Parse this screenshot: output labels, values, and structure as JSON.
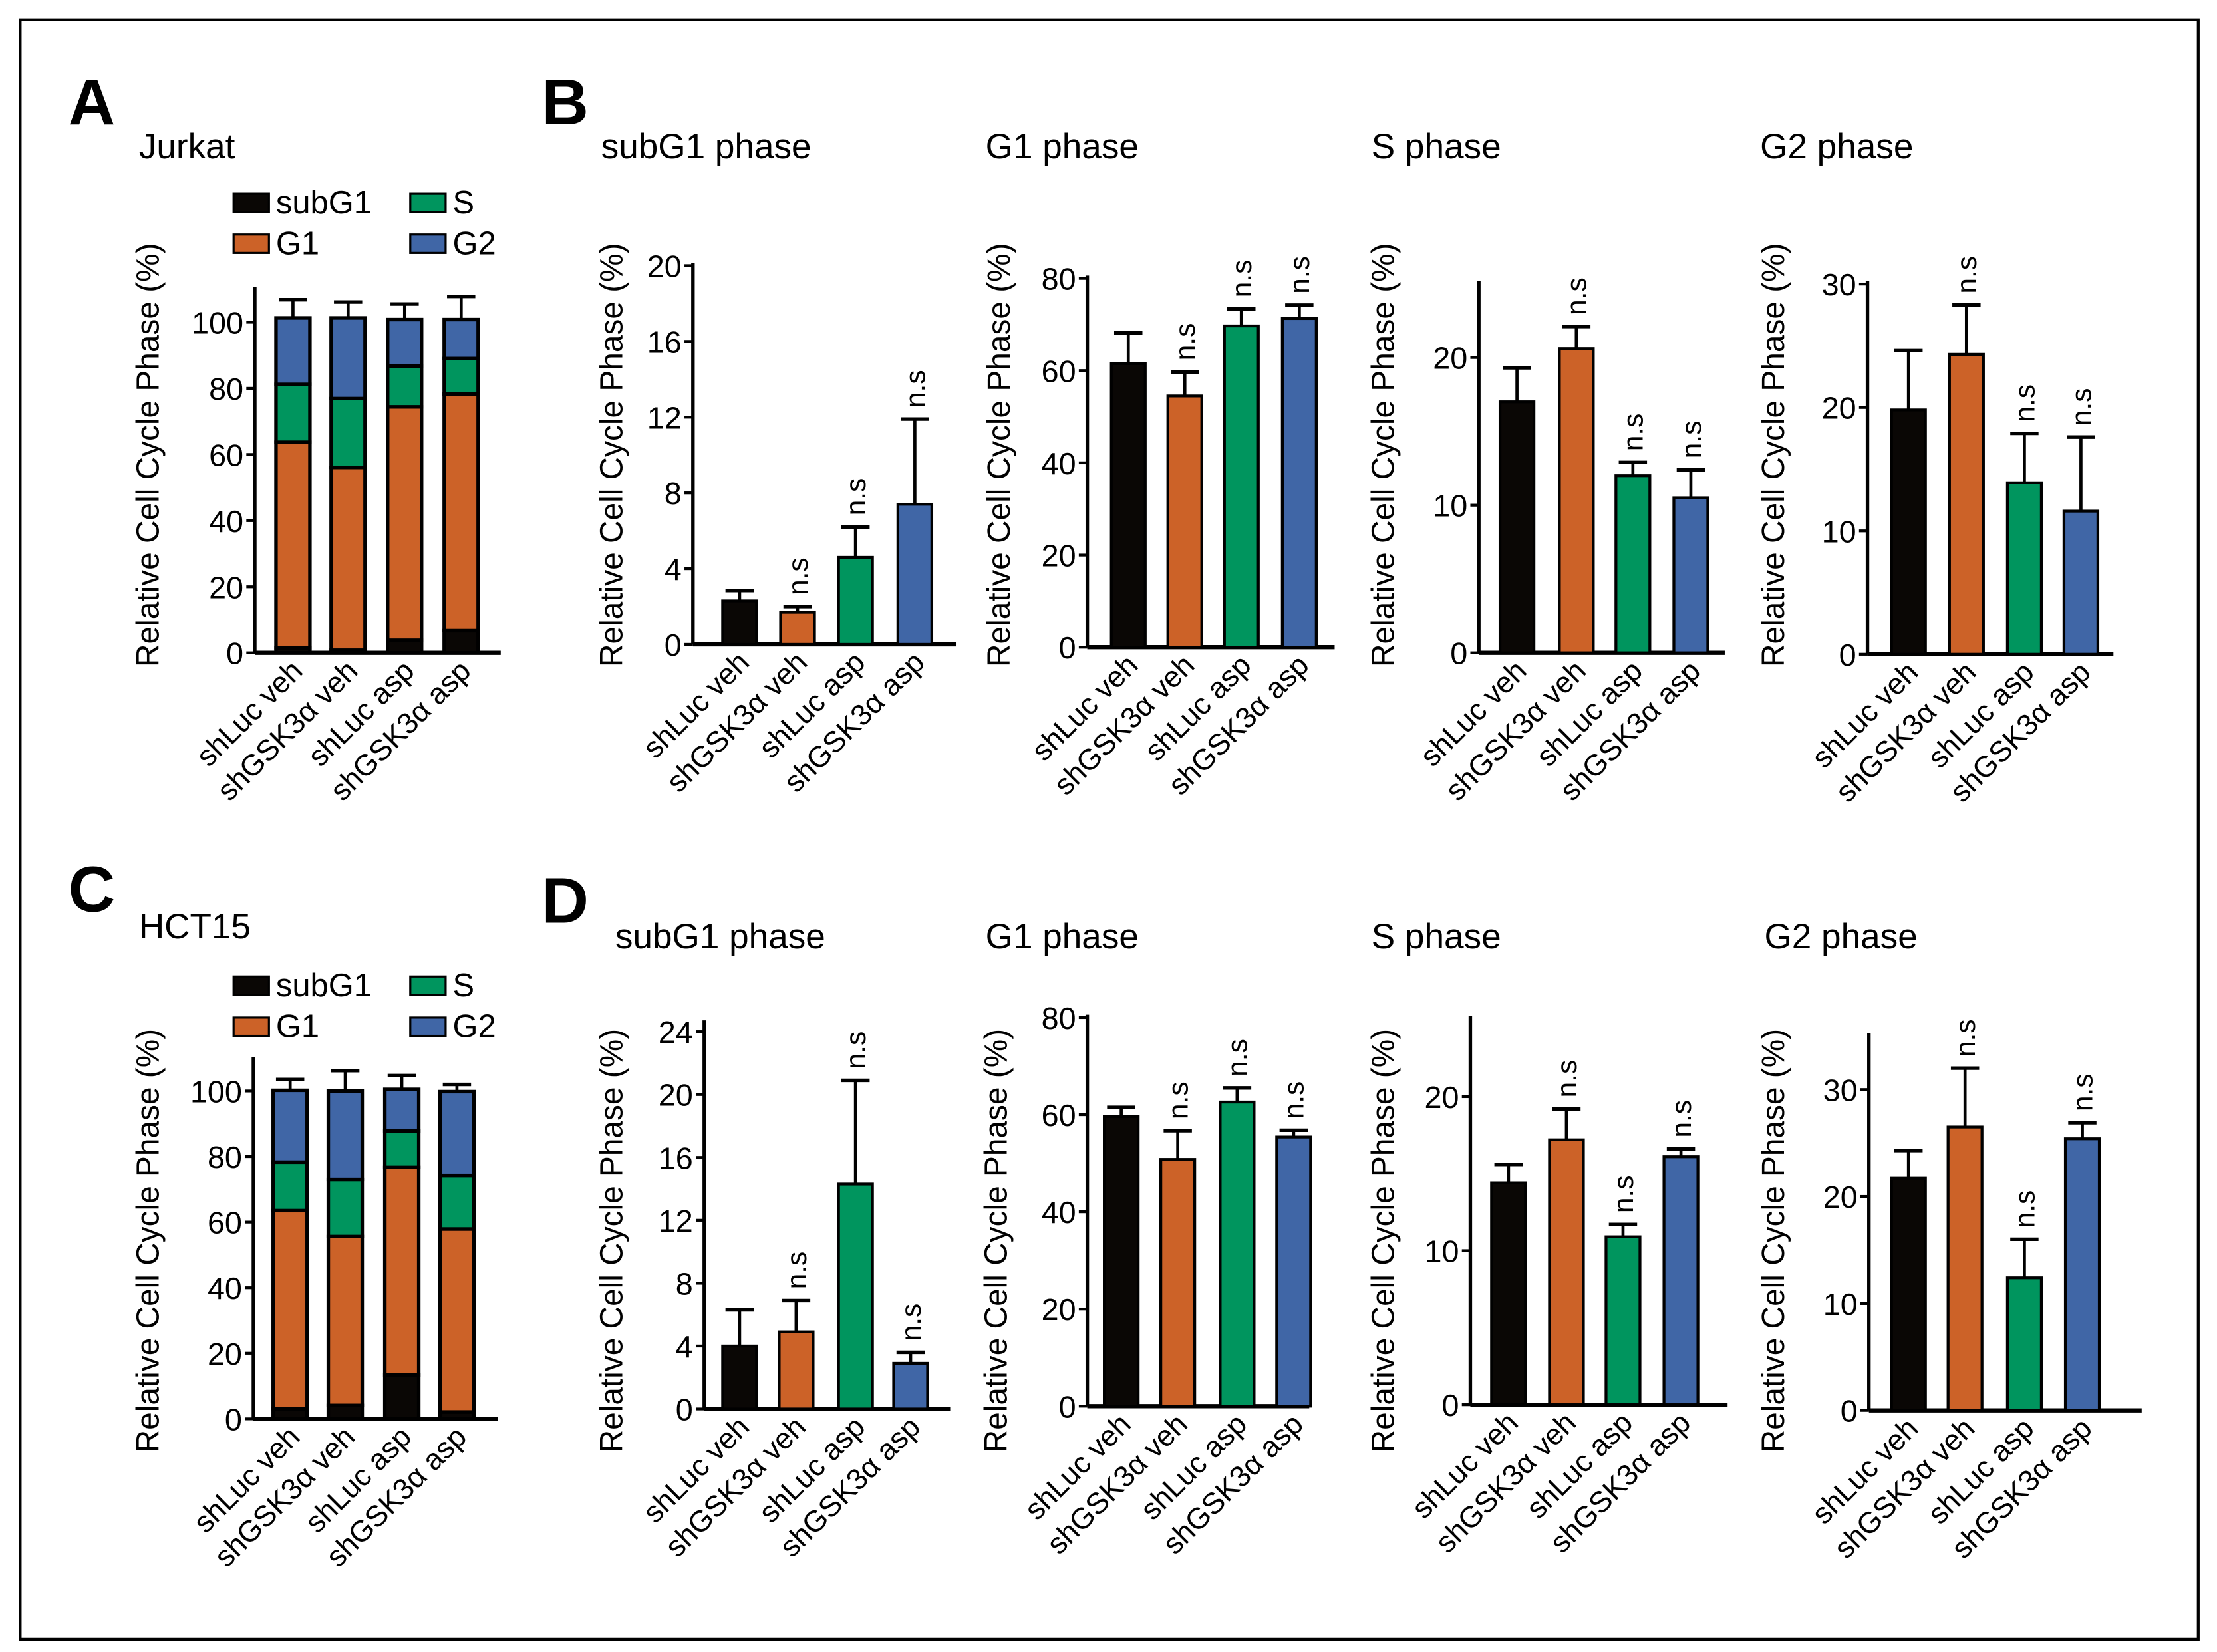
{
  "panels": {
    "A": {
      "letter": "A",
      "title": "Jurkat"
    },
    "B": {
      "letter": "B"
    },
    "C": {
      "letter": "C",
      "title": "HCT15"
    },
    "D": {
      "letter": "D"
    }
  },
  "colors": {
    "subG1": "#0a0705",
    "G1": "#cc6228",
    "S": "#00955e",
    "G2": "#4066a6"
  },
  "chart_data": [
    {
      "panel": "A",
      "type": "bar",
      "stacked": true,
      "title": "",
      "ylabel": "Relative Cell Cycle Phase (%)",
      "ylim": [
        0,
        110
      ],
      "yticks": [
        0,
        20,
        40,
        60,
        80,
        100
      ],
      "categories": [
        "shLuc veh",
        "shGSK3α veh",
        "shLuc asp",
        "shGSK3α asp"
      ],
      "legend": {
        "placement": "top",
        "order": [
          "subG1",
          "S",
          "G1",
          "G2"
        ]
      },
      "series": [
        {
          "name": "subG1",
          "color": "#0a0705",
          "values": [
            1.5,
            0.8,
            3.8,
            6.7
          ],
          "errors": [
            1.0,
            1.1,
            2.2,
            5.0
          ]
        },
        {
          "name": "G1",
          "color": "#cc6228",
          "values": [
            62.2,
            55.3,
            70.6,
            71.6
          ],
          "errors": [
            6.5,
            5.6,
            3.8,
            3.7
          ]
        },
        {
          "name": "S",
          "color": "#00955e",
          "values": [
            17.5,
            20.8,
            12.3,
            10.7
          ],
          "errors": [
            2.5,
            2.5,
            1.4,
            2.7
          ]
        },
        {
          "name": "G2",
          "color": "#4066a6",
          "values": [
            20.1,
            24.4,
            14.1,
            11.8
          ],
          "errors": [
            5.5,
            4.8,
            4.7,
            7.0
          ]
        }
      ]
    },
    {
      "panel": "B",
      "type": "bar",
      "title": "subG1 phase",
      "ylabel": "Relative Cell Cycle Phase (%)",
      "ylim": [
        0,
        20
      ],
      "yticks": [
        0,
        4,
        8,
        12,
        16,
        20
      ],
      "categories": [
        "shLuc veh",
        "shGSK3α veh",
        "shLuc asp",
        "shGSK3α asp"
      ],
      "colors": [
        "#0a0705",
        "#cc6228",
        "#00955e",
        "#4066a6"
      ],
      "values": [
        2.3,
        1.7,
        4.6,
        7.4
      ],
      "errors": [
        0.55,
        0.3,
        1.6,
        4.5
      ],
      "annotations": [
        "",
        "n.s",
        "n.s",
        "n.s"
      ]
    },
    {
      "panel": "B",
      "type": "bar",
      "title": "G1 phase",
      "ylabel": "Relative Cell Cycle Phase (%)",
      "ylim": [
        0,
        80
      ],
      "yticks": [
        0,
        20,
        40,
        60,
        80
      ],
      "categories": [
        "shLuc veh",
        "shGSK3α veh",
        "shLuc asp",
        "shGSK3α asp"
      ],
      "colors": [
        "#0a0705",
        "#cc6228",
        "#00955e",
        "#4066a6"
      ],
      "values": [
        61.5,
        54.5,
        69.7,
        71.3
      ],
      "errors": [
        6.7,
        5.2,
        3.7,
        2.9
      ],
      "annotations": [
        "",
        "n.s",
        "n.s",
        "n.s"
      ]
    },
    {
      "panel": "B",
      "type": "bar",
      "title": "S phase",
      "ylabel": "Relative Cell Cycle Phase (%)",
      "ylim": [
        0,
        25
      ],
      "yticks": [
        0,
        10,
        20
      ],
      "categories": [
        "shLuc veh",
        "shGSK3α veh",
        "shLuc asp",
        "shGSK3α asp"
      ],
      "colors": [
        "#0a0705",
        "#cc6228",
        "#00955e",
        "#4066a6"
      ],
      "values": [
        17.0,
        20.6,
        12.0,
        10.5
      ],
      "errors": [
        2.3,
        1.5,
        0.9,
        1.9
      ],
      "annotations": [
        "",
        "n.s",
        "n.s",
        "n.s"
      ]
    },
    {
      "panel": "B",
      "type": "bar",
      "title": "G2 phase",
      "ylabel": "Relative Cell Cycle Phase (%)",
      "ylim": [
        0,
        30
      ],
      "yticks": [
        0,
        10,
        20,
        30
      ],
      "categories": [
        "shLuc veh",
        "shGSK3α veh",
        "shLuc asp",
        "shGSK3α asp"
      ],
      "colors": [
        "#0a0705",
        "#cc6228",
        "#00955e",
        "#4066a6"
      ],
      "values": [
        19.8,
        24.3,
        13.9,
        11.6
      ],
      "errors": [
        4.8,
        4.0,
        4.0,
        6.0
      ],
      "annotations": [
        "",
        "n.s",
        "n.s",
        "n.s"
      ]
    },
    {
      "panel": "C",
      "type": "bar",
      "stacked": true,
      "title": "",
      "ylabel": "Relative Cell Cycle Phase (%)",
      "ylim": [
        0,
        110
      ],
      "yticks": [
        0,
        20,
        40,
        60,
        80,
        100
      ],
      "categories": [
        "shLuc veh",
        "shGSK3α veh",
        "shLuc asp",
        "shGSK3α asp"
      ],
      "legend": {
        "placement": "top",
        "order": [
          "subG1",
          "S",
          "G1",
          "G2"
        ]
      },
      "series": [
        {
          "name": "subG1",
          "color": "#0a0705",
          "values": [
            3.1,
            4.1,
            13.4,
            2.1
          ],
          "errors": [
            3.0,
            2.5,
            7.3,
            1.2
          ]
        },
        {
          "name": "G1",
          "color": "#cc6228",
          "values": [
            60.4,
            51.5,
            63.3,
            55.8
          ],
          "errors": [
            2.2,
            6.2,
            3.5,
            2.1
          ]
        },
        {
          "name": "S",
          "color": "#00955e",
          "values": [
            14.8,
            17.4,
            11.1,
            16.3
          ],
          "errors": [
            1.9,
            2.8,
            1.6,
            1.3
          ]
        },
        {
          "name": "G2",
          "color": "#4066a6",
          "values": [
            21.9,
            27.0,
            12.7,
            25.6
          ],
          "errors": [
            3.3,
            6.2,
            4.2,
            2.2
          ]
        }
      ]
    },
    {
      "panel": "D",
      "type": "bar",
      "title": "subG1 phase",
      "ylabel": "Relative Cell Cycle Phase (%)",
      "ylim": [
        0,
        24
      ],
      "yticks": [
        0,
        4,
        8,
        12,
        16,
        20,
        24
      ],
      "categories": [
        "shLuc veh",
        "shGSK3α veh",
        "shLuc asp",
        "shGSK3α asp"
      ],
      "colors": [
        "#0a0705",
        "#cc6228",
        "#00955e",
        "#4066a6"
      ],
      "values": [
        4.0,
        4.9,
        14.3,
        2.9
      ],
      "errors": [
        2.3,
        2.0,
        6.6,
        0.7
      ],
      "annotations": [
        "",
        "n.s",
        "n.s",
        "n.s"
      ]
    },
    {
      "panel": "D",
      "type": "bar",
      "title": "G1 phase",
      "ylabel": "Relative Cell Cycle Phase (%)",
      "ylim": [
        0,
        80
      ],
      "yticks": [
        0,
        20,
        40,
        60,
        80
      ],
      "categories": [
        "shLuc veh",
        "shGSK3α veh",
        "shLuc asp",
        "shGSK3α asp"
      ],
      "colors": [
        "#0a0705",
        "#cc6228",
        "#00955e",
        "#4066a6"
      ],
      "values": [
        59.6,
        50.8,
        62.6,
        55.4
      ],
      "errors": [
        1.9,
        5.9,
        2.9,
        1.4
      ],
      "annotations": [
        "",
        "n.s",
        "n.s",
        "n.s"
      ]
    },
    {
      "panel": "D",
      "type": "bar",
      "title": "S phase",
      "ylabel": "Relative Cell Cycle Phase (%)",
      "ylim": [
        0,
        25
      ],
      "yticks": [
        0,
        10,
        20
      ],
      "categories": [
        "shLuc veh",
        "shGSK3α veh",
        "shLuc asp",
        "shGSK3α asp"
      ],
      "colors": [
        "#0a0705",
        "#cc6228",
        "#00955e",
        "#4066a6"
      ],
      "values": [
        14.4,
        17.2,
        10.9,
        16.1
      ],
      "errors": [
        1.2,
        2.0,
        0.8,
        0.5
      ],
      "annotations": [
        "",
        "n.s",
        "n.s",
        "n.s"
      ]
    },
    {
      "panel": "D",
      "type": "bar",
      "title": "G2 phase",
      "ylabel": "Relative Cell Cycle Phase (%)",
      "ylim": [
        0,
        35
      ],
      "yticks": [
        0,
        10,
        20,
        30
      ],
      "categories": [
        "shLuc veh",
        "shGSK3α veh",
        "shLuc asp",
        "shGSK3α asp"
      ],
      "colors": [
        "#0a0705",
        "#cc6228",
        "#00955e",
        "#4066a6"
      ],
      "values": [
        21.7,
        26.5,
        12.4,
        25.4
      ],
      "errors": [
        2.6,
        5.5,
        3.6,
        1.5
      ],
      "annotations": [
        "",
        "n.s",
        "n.s",
        "n.s"
      ]
    }
  ]
}
